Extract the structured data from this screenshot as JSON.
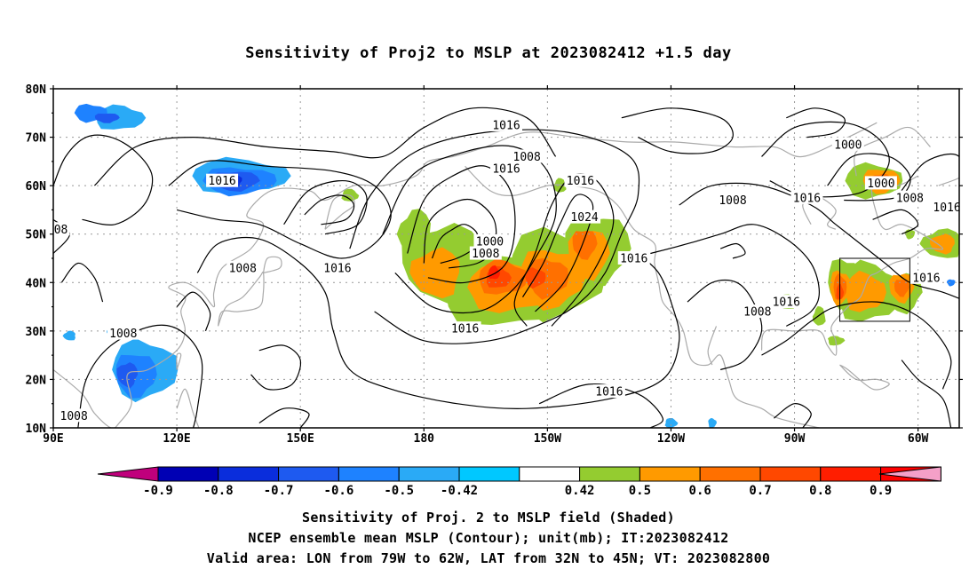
{
  "title": "Sensitivity of Proj2 to MSLP at 2023082412 +1.5 day",
  "axes": {
    "lat_labels": [
      "80N",
      "70N",
      "60N",
      "50N",
      "40N",
      "30N",
      "20N",
      "10N"
    ],
    "lat_values": [
      80,
      70,
      60,
      50,
      40,
      30,
      20,
      10
    ],
    "lon_labels": [
      "90E",
      "120E",
      "150E",
      "180",
      "150W",
      "120W",
      "90W",
      "60W"
    ],
    "lon_values": [
      90,
      120,
      150,
      180,
      210,
      240,
      270,
      300
    ],
    "lon_range": [
      90,
      310
    ],
    "lat_range": [
      10,
      80
    ]
  },
  "colorbar": {
    "labels": [
      "-0.9",
      "-0.8",
      "-0.7",
      "-0.6",
      "-0.5",
      "-0.42",
      "0.42",
      "0.5",
      "0.6",
      "0.7",
      "0.8",
      "0.9"
    ],
    "colors": [
      "#c0007c",
      "#0000b4",
      "#0a2ddc",
      "#1e5af0",
      "#1e82ff",
      "#2aaaf6",
      "#00c8ff",
      "#ffffff",
      "#94cc30",
      "#ff9a00",
      "#ff7000",
      "#ff4800",
      "#ff1e00",
      "#ff0000",
      "#f4a0c8"
    ]
  },
  "contour_labels": [
    {
      "text": "1016",
      "lon": 200,
      "lat": 72.5
    },
    {
      "text": "1008",
      "lon": 205,
      "lat": 66
    },
    {
      "text": "1016",
      "lon": 200,
      "lat": 63.5
    },
    {
      "text": "1016",
      "lon": 131,
      "lat": 61
    },
    {
      "text": "1016",
      "lon": 218,
      "lat": 61
    },
    {
      "text": "1024",
      "lon": 219,
      "lat": 53.5
    },
    {
      "text": "1000",
      "lon": 196,
      "lat": 48.5
    },
    {
      "text": "1008",
      "lon": 195,
      "lat": 46
    },
    {
      "text": "1016",
      "lon": 231,
      "lat": 45
    },
    {
      "text": "1016",
      "lon": 190,
      "lat": 30.5
    },
    {
      "text": "1016",
      "lon": 225,
      "lat": 17.5
    },
    {
      "text": "1008",
      "lon": 107,
      "lat": 29.5
    },
    {
      "text": "1008",
      "lon": 95,
      "lat": 12.5
    },
    {
      "text": "1008",
      "lon": 136,
      "lat": 43
    },
    {
      "text": "1016",
      "lon": 159,
      "lat": 43
    },
    {
      "text": "008",
      "lon": 91,
      "lat": 51
    },
    {
      "text": "1008",
      "lon": 255,
      "lat": 57
    },
    {
      "text": "1016",
      "lon": 273,
      "lat": 57.5
    },
    {
      "text": "1000",
      "lon": 283,
      "lat": 68.5
    },
    {
      "text": "1000",
      "lon": 291,
      "lat": 60.5
    },
    {
      "text": "1008",
      "lon": 298,
      "lat": 57.5
    },
    {
      "text": "1016",
      "lon": 307,
      "lat": 55.5
    },
    {
      "text": "1008",
      "lon": 261,
      "lat": 34
    },
    {
      "text": "1016",
      "lon": 268,
      "lat": 36
    },
    {
      "text": "1016",
      "lon": 302,
      "lat": 41
    }
  ],
  "valid_area": {
    "lon": [
      281,
      298
    ],
    "lat": [
      32,
      45
    ]
  },
  "captions": [
    "Sensitivity of Proj. 2 to MSLP field (Shaded)",
    "NCEP ensemble mean MSLP (Contour); unit(mb); IT:2023082412",
    "Valid area: LON from 79W to 62W, LAT from 32N to 45N; VT: 2023082800"
  ]
}
